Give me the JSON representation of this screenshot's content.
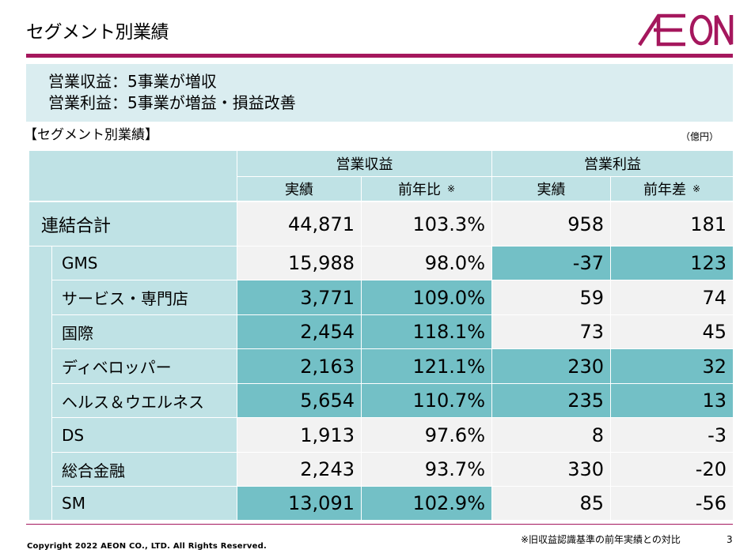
{
  "header": {
    "title": "セグメント別業績",
    "logo_text": "ÆON"
  },
  "summary": {
    "line1": "営業収益：5事業が増収",
    "line2": "営業利益：5事業が増益・損益改善"
  },
  "table_title": "【セグメント別業績】",
  "unit": "（億円）",
  "table": {
    "group_revenue": "営業収益",
    "group_profit": "営業利益",
    "col_rev_actual": "実績",
    "col_rev_ratio": "前年比",
    "col_prof_actual": "実績",
    "col_prof_diff": "前年差",
    "note_mark": "※",
    "rows": [
      {
        "label": "連結合計",
        "rev": "44,871",
        "ratio": "103.3%",
        "prof": "958",
        "diff": "181"
      },
      {
        "label": "GMS",
        "rev": "15,988",
        "ratio": "98.0%",
        "prof": "-37",
        "diff": "123"
      },
      {
        "label": "サービス・専門店",
        "rev": "3,771",
        "ratio": "109.0%",
        "prof": "59",
        "diff": "74"
      },
      {
        "label": "国際",
        "rev": "2,454",
        "ratio": "118.1%",
        "prof": "73",
        "diff": "45"
      },
      {
        "label": "ディベロッパー",
        "rev": "2,163",
        "ratio": "121.1%",
        "prof": "230",
        "diff": "32"
      },
      {
        "label": "ヘルス＆ウエルネス",
        "rev": "5,654",
        "ratio": "110.7%",
        "prof": "235",
        "diff": "13"
      },
      {
        "label": "DS",
        "rev": "1,913",
        "ratio": "97.6%",
        "prof": "8",
        "diff": "-3"
      },
      {
        "label": "総合金融",
        "rev": "2,243",
        "ratio": "93.7%",
        "prof": "330",
        "diff": "-20"
      },
      {
        "label": "SM",
        "rev": "13,091",
        "ratio": "102.9%",
        "prof": "85",
        "diff": "-56"
      }
    ]
  },
  "footer": {
    "copyright": "Copyright 2022 AEON CO., LTD. All Rights Reserved.",
    "note": "※旧収益認識基準の前年実績との対比",
    "page": "3"
  },
  "colors": {
    "brand": "#a5175d",
    "header_bg": "#bfe2e5",
    "label_bg": "#bfe2e5",
    "highlight": "#73c0c6",
    "plain": "#f2f2f2",
    "summary_bg": "#daedf0"
  }
}
